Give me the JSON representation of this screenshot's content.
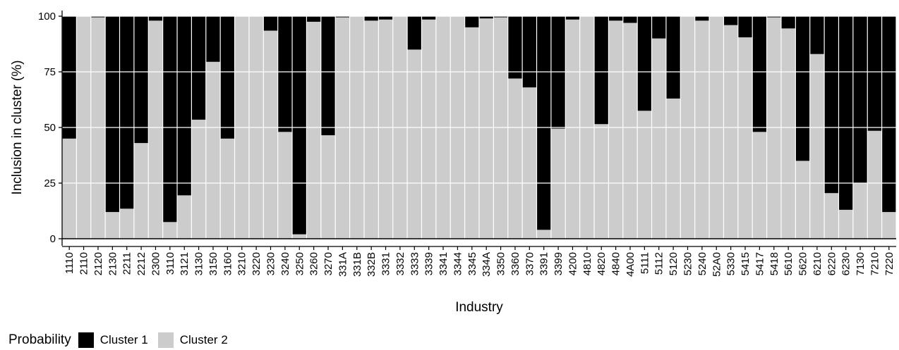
{
  "chart_data": {
    "type": "bar",
    "stacked": true,
    "xlabel": "Industry",
    "ylabel": "Inclusion in cluster (%)",
    "ylim": [
      0,
      100
    ],
    "yticks": [
      0,
      25,
      50,
      75,
      100
    ],
    "grid": true,
    "legend_position": "bottom",
    "categories": [
      "1110",
      "2110",
      "2120",
      "2130",
      "2211",
      "2212",
      "2300",
      "3110",
      "3121",
      "3130",
      "3150",
      "3160",
      "3210",
      "3220",
      "3230",
      "3240",
      "3250",
      "3260",
      "3270",
      "331A",
      "331B",
      "332B",
      "3331",
      "3332",
      "3333",
      "3339",
      "3341",
      "3344",
      "3345",
      "334A",
      "3350",
      "3360",
      "3370",
      "3391",
      "3399",
      "4200",
      "4810",
      "4820",
      "4840",
      "4A00",
      "5111",
      "5112",
      "5120",
      "5230",
      "5240",
      "52A0",
      "5330",
      "5415",
      "5417",
      "5418",
      "5610",
      "5620",
      "6210",
      "6220",
      "6230",
      "7130",
      "7210",
      "7220"
    ],
    "series": [
      {
        "name": "Cluster 1",
        "color": "#000000",
        "values": [
          55,
          0,
          0.5,
          88,
          86.5,
          57,
          2,
          92.5,
          80.5,
          46.5,
          20.5,
          55,
          0,
          0,
          6.5,
          52,
          98,
          2.5,
          53.5,
          0.5,
          0,
          2,
          1.5,
          0,
          15,
          1.5,
          0,
          0,
          5,
          1,
          0.5,
          28,
          32,
          96,
          50.5,
          1.5,
          0,
          48.5,
          2,
          3,
          42.5,
          10,
          37,
          0,
          2,
          0,
          4,
          9.5,
          52,
          0.5,
          5.5,
          65,
          17,
          79.5,
          87,
          75,
          51.5,
          88
        ]
      },
      {
        "name": "Cluster 2",
        "color": "#cccccc",
        "values": [
          45,
          100,
          99.5,
          12,
          13.5,
          43,
          98,
          7.5,
          19.5,
          53.5,
          79.5,
          45,
          100,
          100,
          93.5,
          48,
          2,
          97.5,
          46.5,
          99.5,
          100,
          98,
          98.5,
          100,
          85,
          98.5,
          100,
          100,
          95,
          99,
          99.5,
          72,
          68,
          4,
          49.5,
          98.5,
          100,
          51.5,
          98,
          97,
          57.5,
          90,
          63,
          100,
          98,
          100,
          96,
          90.5,
          48,
          99.5,
          94.5,
          35,
          83,
          20.5,
          13,
          25,
          48.5,
          12
        ]
      }
    ]
  },
  "legend": {
    "title": "Probability",
    "items": [
      {
        "label": "Cluster 1",
        "color": "#000000"
      },
      {
        "label": "Cluster 2",
        "color": "#cccccc"
      }
    ]
  }
}
